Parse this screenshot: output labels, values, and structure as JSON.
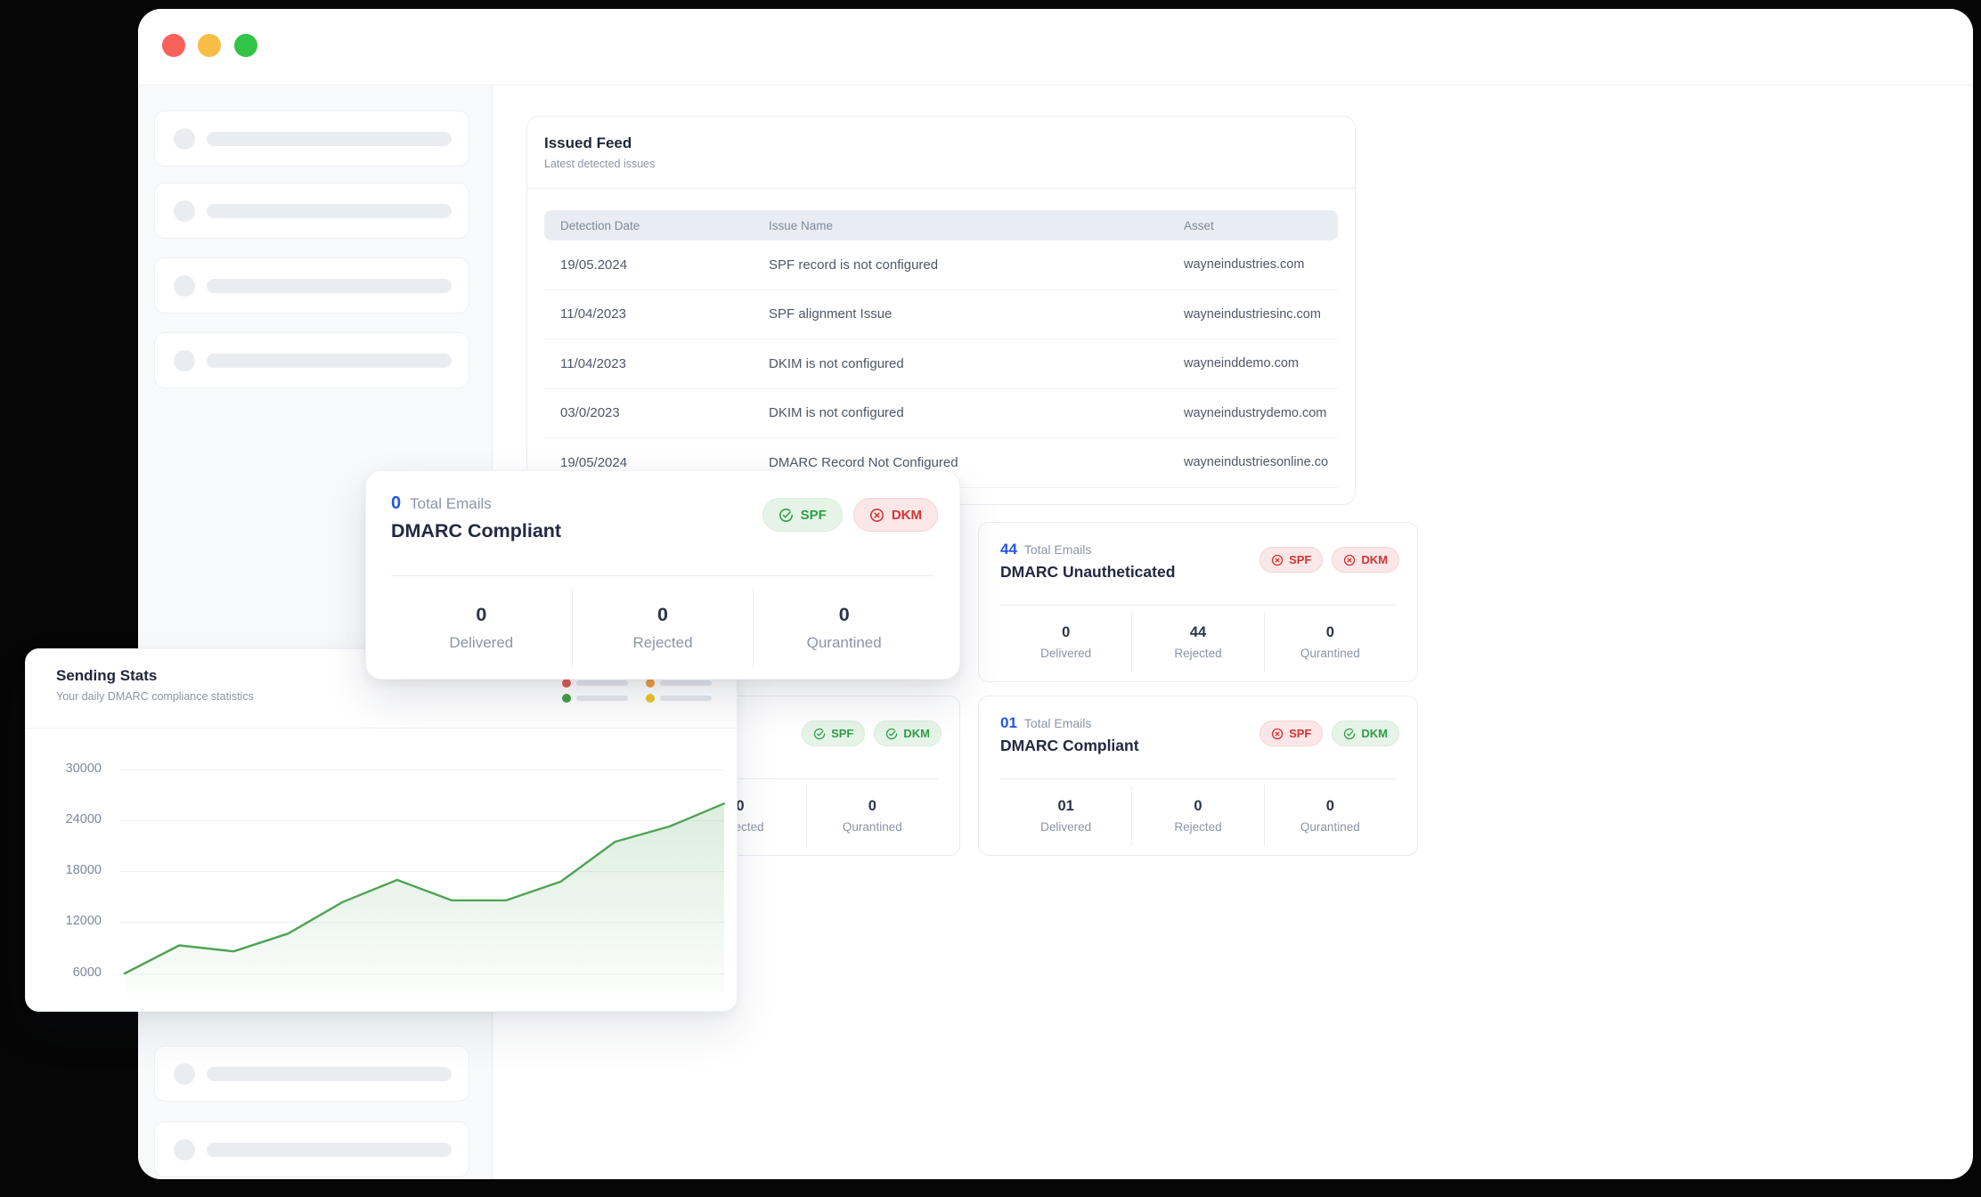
{
  "issued_feed": {
    "title": "Issued Feed",
    "subtitle": "Latest detected issues",
    "columns": {
      "date": "Detection Date",
      "issue": "Issue Name",
      "asset": "Asset"
    },
    "rows": [
      {
        "date": "19/05.2024",
        "issue": "SPF record is not configured",
        "asset": "wayneindustries.com"
      },
      {
        "date": "11/04/2023",
        "issue": "SPF alignment Issue",
        "asset": "wayneindustriesinc.com"
      },
      {
        "date": "11/04/2023",
        "issue": "DKIM is not configured",
        "asset": "wayneinddemo.com"
      },
      {
        "date": "03/0/2023",
        "issue": "DKIM is not configured",
        "asset": "wayneindustrydemo.com"
      },
      {
        "date": "19/05/2024",
        "issue": "DMARC Record Not Configured",
        "asset": "wayneindustriesonline.co"
      }
    ]
  },
  "stat_cards": {
    "dmarc_compliant_overlay": {
      "total_value": "0",
      "total_label": "Total Emails",
      "title": "DMARC Compliant",
      "badges": [
        {
          "label": "SPF",
          "status": "pass"
        },
        {
          "label": "DKM",
          "status": "fail"
        }
      ],
      "stats": [
        {
          "value": "0",
          "label": "Delivered"
        },
        {
          "value": "0",
          "label": "Rejected"
        },
        {
          "value": "0",
          "label": "Qurantined"
        }
      ]
    },
    "dmarc_unauthenticated": {
      "total_value": "44",
      "total_label": "Total Emails",
      "title": "DMARC Unautheticated",
      "badges": [
        {
          "label": "SPF",
          "status": "fail"
        },
        {
          "label": "DKM",
          "status": "fail"
        }
      ],
      "stats": [
        {
          "value": "0",
          "label": "Delivered"
        },
        {
          "value": "44",
          "label": "Rejected"
        },
        {
          "value": "0",
          "label": "Qurantined"
        }
      ]
    },
    "dmarc_compliant_right": {
      "total_value": "01",
      "total_label": "Total Emails",
      "title": "DMARC Compliant",
      "badges": [
        {
          "label": "SPF",
          "status": "fail"
        },
        {
          "label": "DKM",
          "status": "pass"
        }
      ],
      "stats": [
        {
          "value": "01",
          "label": "Delivered"
        },
        {
          "value": "0",
          "label": "Rejected"
        },
        {
          "value": "0",
          "label": "Qurantined"
        }
      ]
    },
    "partially_hidden": {
      "badges": [
        {
          "label": "SPF",
          "status": "pass"
        },
        {
          "label": "DKM",
          "status": "pass"
        }
      ],
      "stats": [
        {
          "value": "0",
          "label": "Rejected"
        },
        {
          "value": "0",
          "label": "Qurantined"
        }
      ]
    }
  },
  "sending_stats": {
    "title": "Sending Stats",
    "subtitle": "Your daily DMARC compliance statistics"
  },
  "chart_data": {
    "type": "area",
    "title": "Sending Stats",
    "values": [
      6000,
      9300,
      8600,
      10700,
      14400,
      17000,
      14600,
      14600,
      16800,
      21500,
      23300,
      26000
    ],
    "x_labels": [],
    "yticks": [
      30000,
      24000,
      18000,
      12000,
      6000
    ],
    "ylim": [
      6000,
      30000
    ],
    "grid": "horizontal",
    "line_color": "#4fa355",
    "area_fill": "green gradient fading down",
    "legend": {
      "type": "skeleton-placeholders",
      "dot_colors": [
        "#e25c4f",
        "#ef9f3e",
        "#43a047",
        "#efc327"
      ]
    }
  },
  "colors": {
    "accent_blue": "#2457e6",
    "pass_green": "#2e9e44",
    "fail_red": "#d53535"
  }
}
